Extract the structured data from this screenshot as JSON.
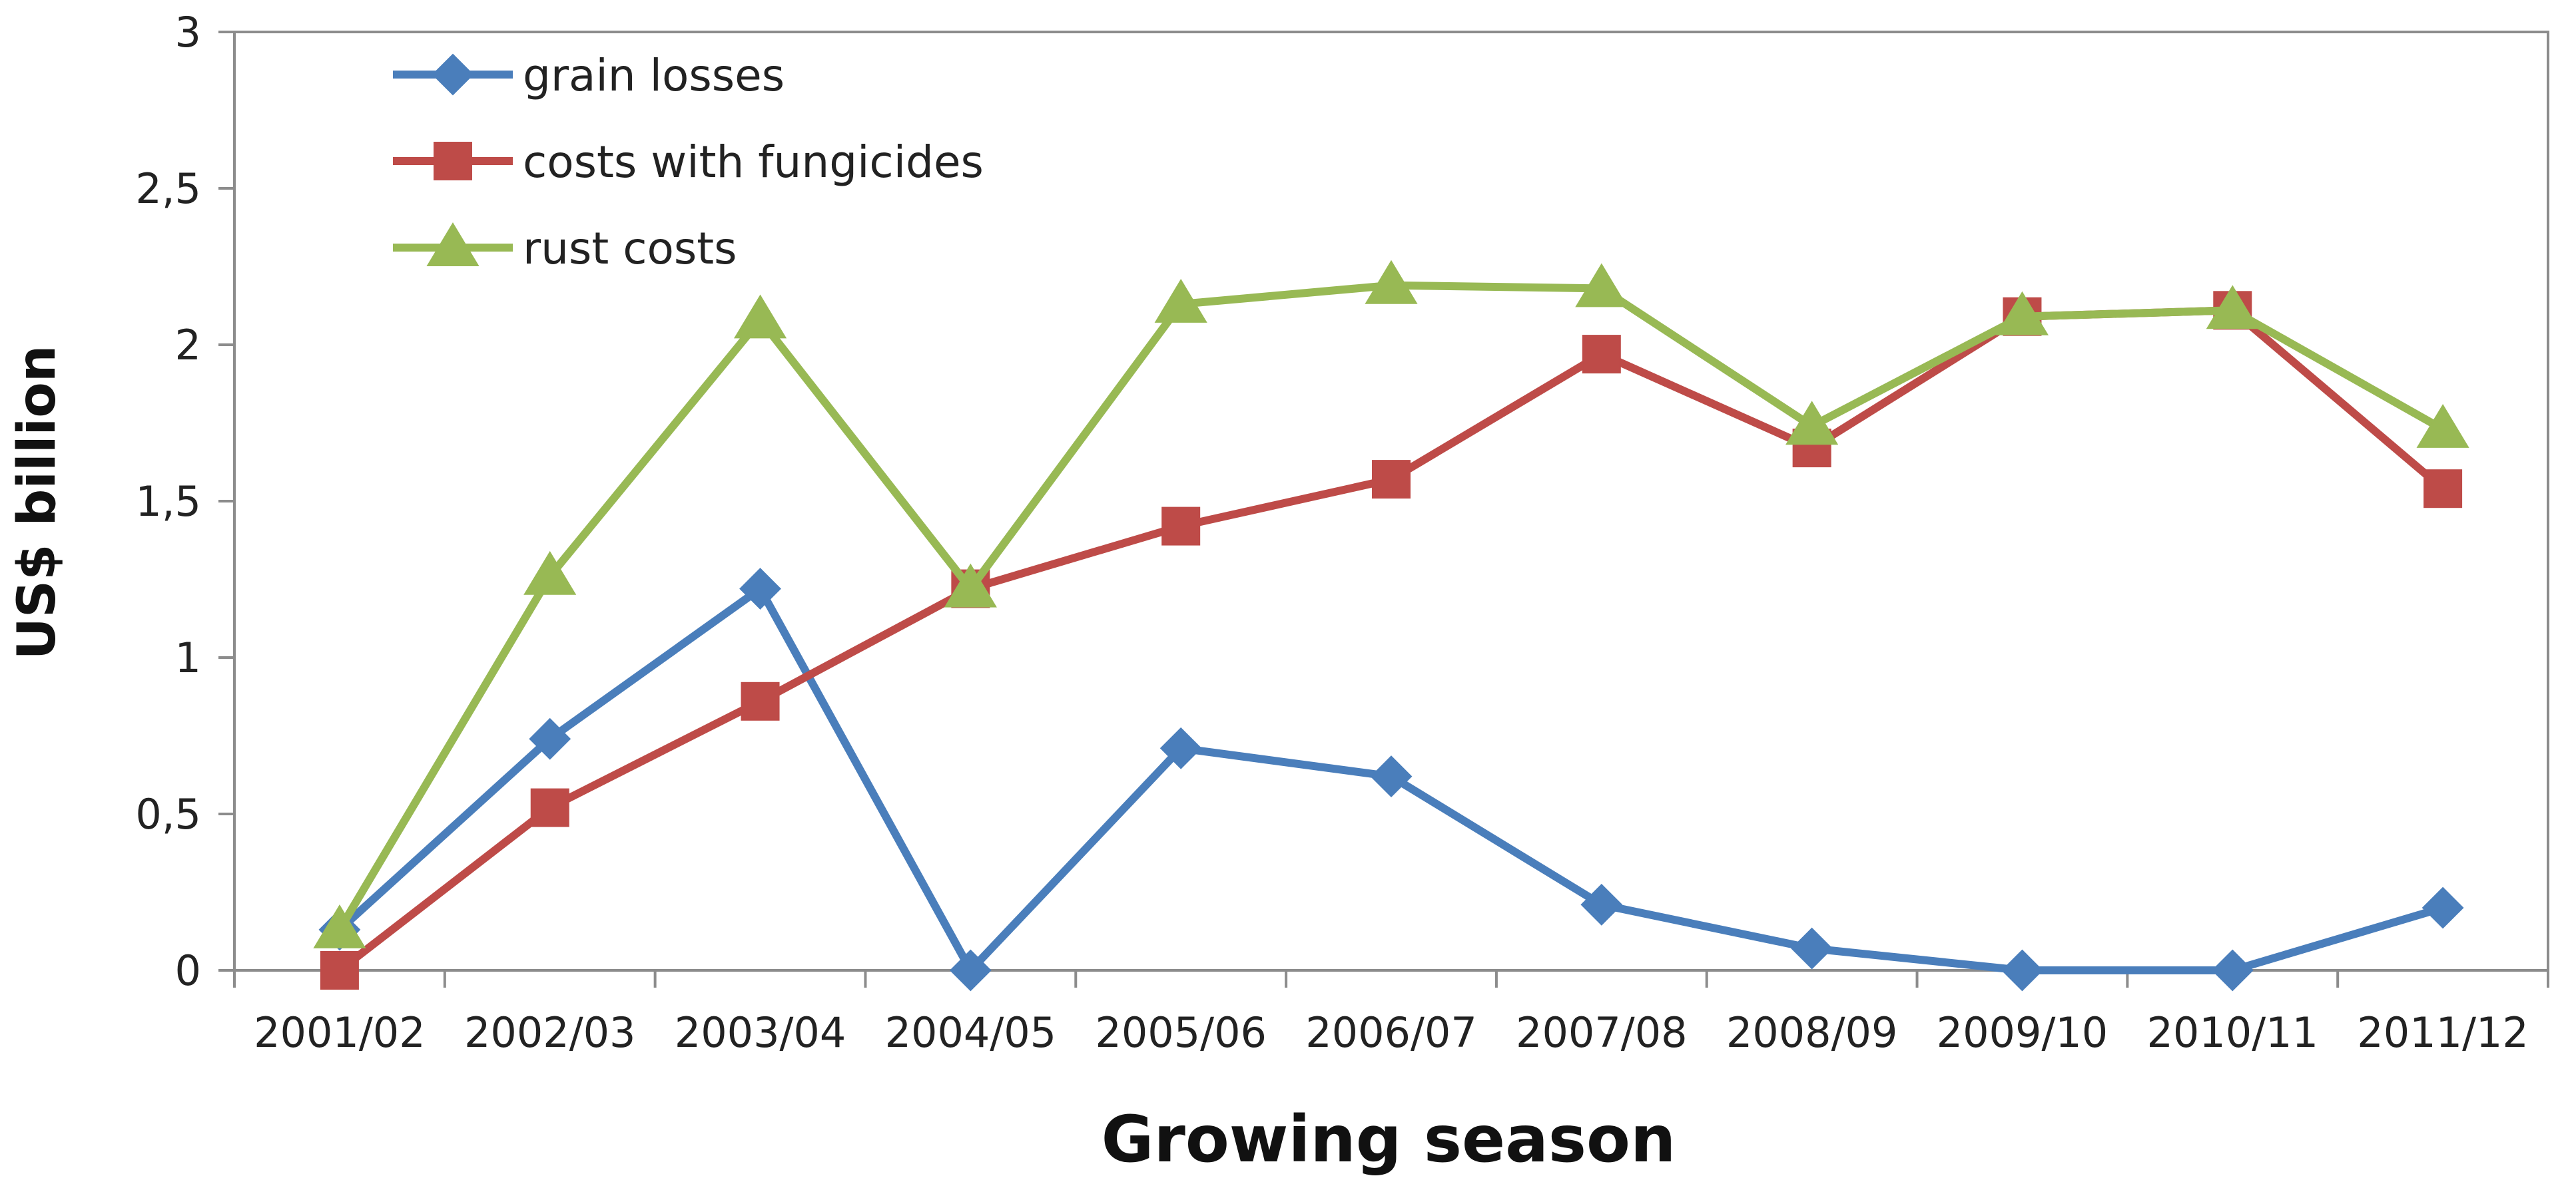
{
  "chart_data": {
    "type": "line",
    "title": "",
    "xlabel": "Growing season",
    "ylabel": "US$ billion",
    "categories": [
      "2001/02",
      "2002/03",
      "2003/04",
      "2004/05",
      "2005/06",
      "2006/07",
      "2007/08",
      "2008/09",
      "2009/10",
      "2010/11",
      "2011/12"
    ],
    "y_ticks": [
      "0",
      "0,5",
      "1",
      "1,5",
      "2",
      "2,5",
      "3"
    ],
    "ylim": [
      0,
      3
    ],
    "grid": false,
    "legend_position": "top-left",
    "series": [
      {
        "name": "grain losses",
        "color": "#4a7ebb",
        "marker": "diamond",
        "values": [
          0.13,
          0.74,
          1.22,
          0.0,
          0.71,
          0.62,
          0.21,
          0.07,
          0.0,
          0.0,
          0.2
        ]
      },
      {
        "name": "costs with fungicides",
        "color": "#be4b48",
        "marker": "square",
        "values": [
          0.0,
          0.52,
          0.86,
          1.22,
          1.42,
          1.57,
          1.97,
          1.67,
          2.09,
          2.11,
          1.54
        ]
      },
      {
        "name": "rust costs",
        "color": "#98b954",
        "marker": "triangle",
        "values": [
          0.13,
          1.26,
          2.08,
          1.22,
          2.13,
          2.19,
          2.18,
          1.74,
          2.09,
          2.11,
          1.73
        ]
      }
    ]
  }
}
